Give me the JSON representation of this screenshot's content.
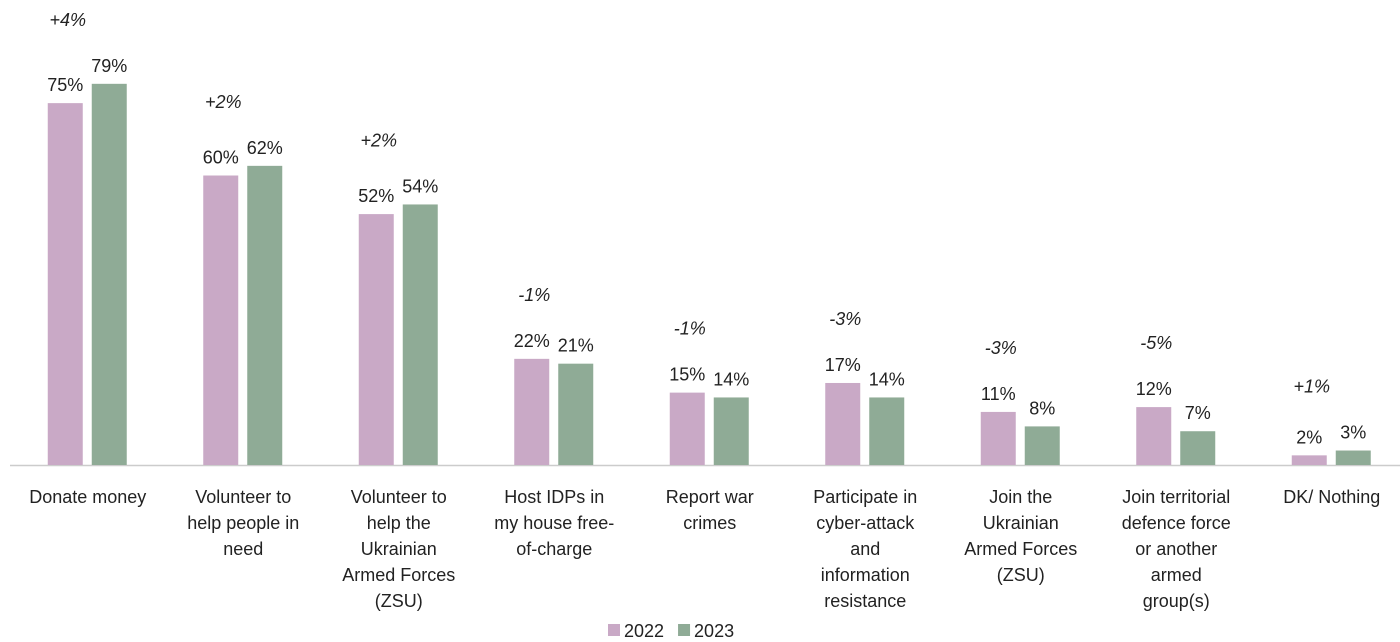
{
  "chart_data": {
    "type": "bar",
    "categories": [
      "Donate money",
      "Volunteer to\nhelp people in\nneed",
      "Volunteer to\nhelp the\nUkrainian\nArmed Forces\n(ZSU)",
      "Host IDPs in\nmy house free-\nof-charge",
      "Report war\ncrimes",
      "Participate in\ncyber-attack\nand\ninformation\nresistance",
      "Join the\nUkrainian\nArmed Forces\n(ZSU)",
      "Join territorial\ndefence force\nor another\narmed\ngroup(s)",
      "DK/ Nothing"
    ],
    "series": [
      {
        "name": "2022",
        "color": "#c9a9c6",
        "values": [
          75,
          60,
          52,
          22,
          15,
          17,
          11,
          12,
          2
        ],
        "value_labels": [
          "75%",
          "60%",
          "52%",
          "22%",
          "15%",
          "17%",
          "11%",
          "12%",
          "2%"
        ]
      },
      {
        "name": "2023",
        "color": "#8fab96",
        "values": [
          79,
          62,
          54,
          21,
          14,
          14,
          8,
          7,
          3
        ],
        "value_labels": [
          "79%",
          "62%",
          "54%",
          "21%",
          "14%",
          "14%",
          "8%",
          "7%",
          "3%"
        ]
      }
    ],
    "annotations": [
      "+4%",
      "+2%",
      "+2%",
      "-1%",
      "-1%",
      "-3%",
      "-3%",
      "-5%",
      "+1%"
    ],
    "ylim": [
      0,
      80
    ]
  }
}
